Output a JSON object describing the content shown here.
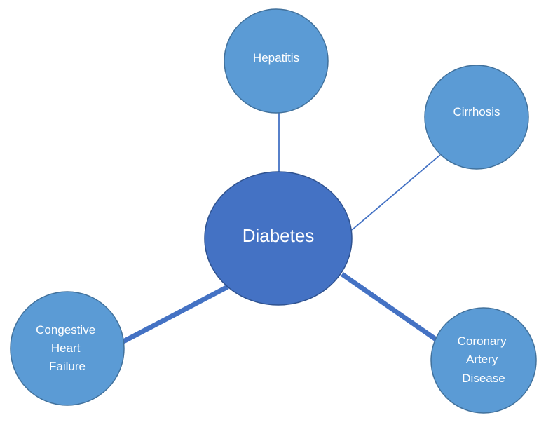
{
  "center": {
    "label": "Diabetes"
  },
  "nodes": [
    {
      "id": "hepatitis",
      "lines": [
        "Hepatitis"
      ]
    },
    {
      "id": "cirrhosis",
      "lines": [
        "Cirrhosis"
      ]
    },
    {
      "id": "chf",
      "lines": [
        "Congestive",
        "Heart",
        "Failure"
      ]
    },
    {
      "id": "cad",
      "lines": [
        "Coronary",
        "Artery",
        "Disease"
      ]
    }
  ],
  "colors": {
    "center_fill": "#4472C4",
    "node_fill": "#5B9BD5",
    "center_stroke": "#2F528F",
    "node_stroke": "#41719C",
    "connector": "#4472C4",
    "text": "#FFFFFF"
  }
}
